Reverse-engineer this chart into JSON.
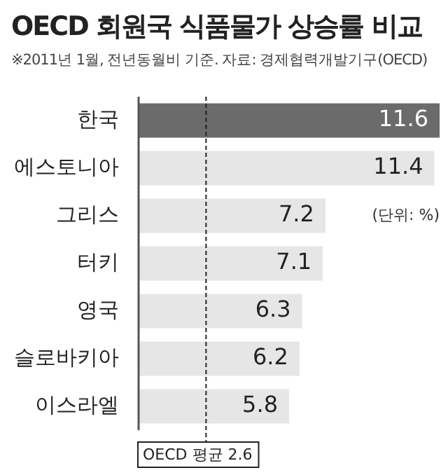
{
  "chart_data": {
    "type": "bar",
    "orientation": "horizontal",
    "title": "OECD 회원국 식품물가 상승률 비교",
    "subtitle": "※2011년 1월, 전년동월비 기준. 자료: 경제협력개발기구(OECD)",
    "categories": [
      "한국",
      "에스토니아",
      "그리스",
      "터키",
      "영국",
      "슬로바키아",
      "이스라엘"
    ],
    "values": [
      11.6,
      11.4,
      7.2,
      7.1,
      6.3,
      6.2,
      5.8
    ],
    "colors": [
      "#6b6b6b",
      "#e6e6e6",
      "#e6e6e6",
      "#e6e6e6",
      "#e6e6e6",
      "#e6e6e6",
      "#e6e6e6"
    ],
    "data_labels": true,
    "annotations": [
      "(단위: %)"
    ],
    "ref_lines": [
      {
        "axis": "x",
        "value": 2.6,
        "label": "OECD 평균 2.6",
        "line_style": "dashed",
        "color": "#222222"
      }
    ]
  }
}
